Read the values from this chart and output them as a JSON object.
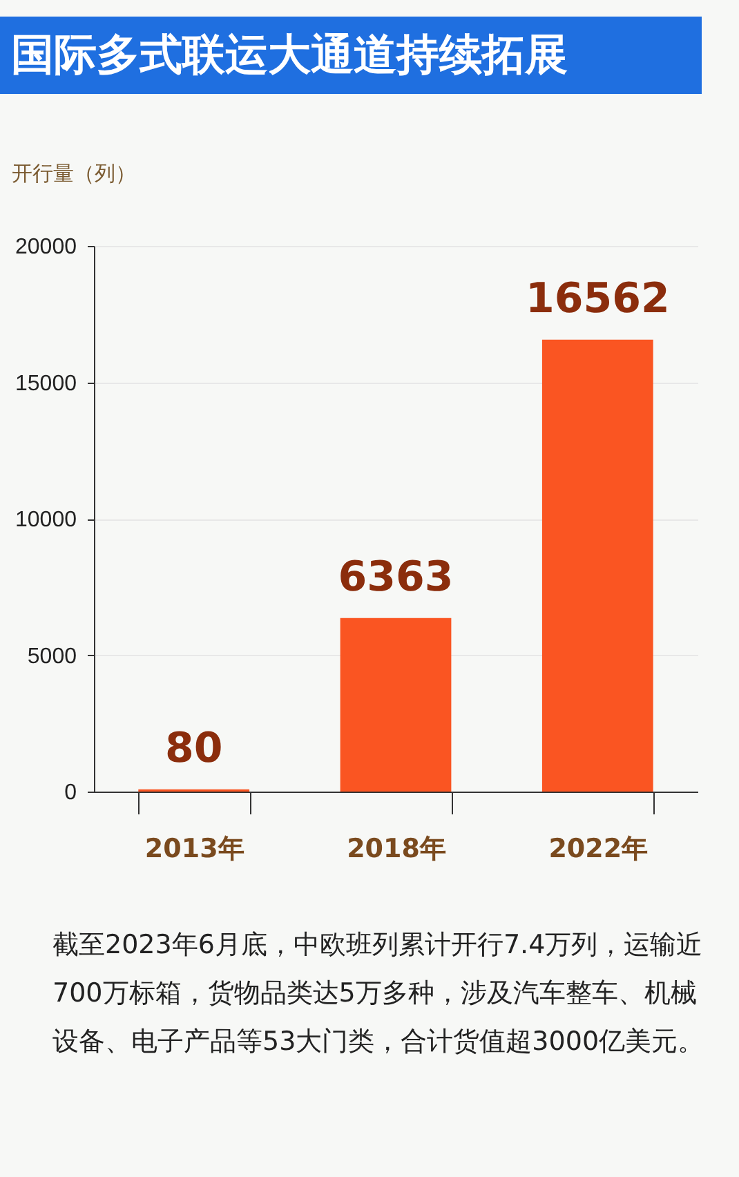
{
  "chart_data": {
    "type": "bar",
    "title": "国际多式联运大通道持续拓展",
    "ylabel": "开行量（列）",
    "categories": [
      "2013年",
      "2018年",
      "2022年"
    ],
    "values": [
      80,
      6363,
      16562
    ],
    "color": "#fa5522",
    "ylim": [
      0,
      20000
    ],
    "yticks": [
      0,
      5000,
      10000,
      15000,
      20000
    ],
    "grid": true,
    "data_labels": true,
    "annotations": [
      "截至2023年6月底，中欧班列累计开行7.4万列，运输近700万标箱，货物品类达5万多种，涉及汽车整车、机械设备、电子产品等53大门类，合计货值超3000亿美元。"
    ]
  }
}
